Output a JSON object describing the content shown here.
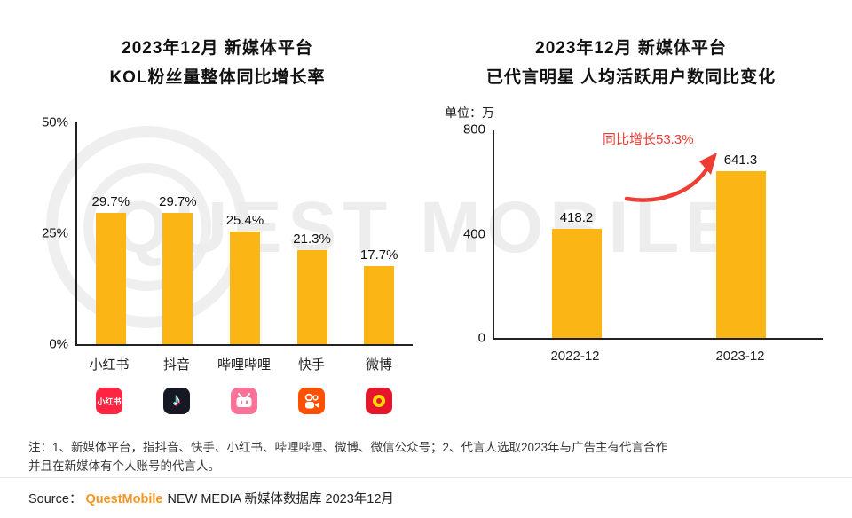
{
  "watermark": {
    "text": "QUEST MOBILE"
  },
  "chart_data": [
    {
      "type": "bar",
      "title": "2023年12月 新媒体平台 KOL粉丝量整体同比增长率",
      "title_lines": [
        "2023年12月 新媒体平台",
        "KOL粉丝量整体同比增长率"
      ],
      "categories": [
        "小红书",
        "抖音",
        "哔哩哔哩",
        "快手",
        "微博"
      ],
      "values": [
        29.7,
        29.7,
        25.4,
        21.3,
        17.7
      ],
      "value_labels": [
        "29.7%",
        "29.7%",
        "25.4%",
        "21.3%",
        "17.7%"
      ],
      "ytick_labels": [
        "50%",
        "25%",
        "0%"
      ],
      "ylim": [
        0,
        50
      ],
      "grid": false,
      "legend": "none",
      "bar_color": "#FBB616",
      "category_icons": [
        "xiaohongshu-icon",
        "douyin-icon",
        "bilibili-icon",
        "kuaishou-icon",
        "weibo-icon"
      ]
    },
    {
      "type": "bar",
      "title": "2023年12月 新媒体平台 已代言明星 人均活跃用户数同比变化",
      "title_lines": [
        "2023年12月 新媒体平台",
        "已代言明星 人均活跃用户数同比变化"
      ],
      "unit_label": "单位：万",
      "categories": [
        "2022-12",
        "2023-12"
      ],
      "values": [
        418.2,
        641.3
      ],
      "value_labels": [
        "418.2",
        "641.3"
      ],
      "ytick_labels": [
        "800",
        "400",
        "0"
      ],
      "ylim": [
        0,
        800
      ],
      "grid": false,
      "legend": "none",
      "bar_color": "#FBB616",
      "annotation": {
        "text": "同比增长53.3%",
        "color": "#EE3D33"
      }
    }
  ],
  "icons": {
    "xiaohongshu_label": "小红书",
    "douyin_glyph": "♪"
  },
  "notes": {
    "lines": [
      "注：1、新媒体平台，指抖音、快手、小红书、哔哩哔哩、微博、微信公众号；2、代言人选取2023年与广告主有代言合作",
      "并且在新媒体有个人账号的代言人。"
    ]
  },
  "source": {
    "prefix": "Source：",
    "brand": "QuestMobile",
    "suffix": "NEW MEDIA 新媒体数据库 2023年12月",
    "brand_color": "#F7941E"
  }
}
